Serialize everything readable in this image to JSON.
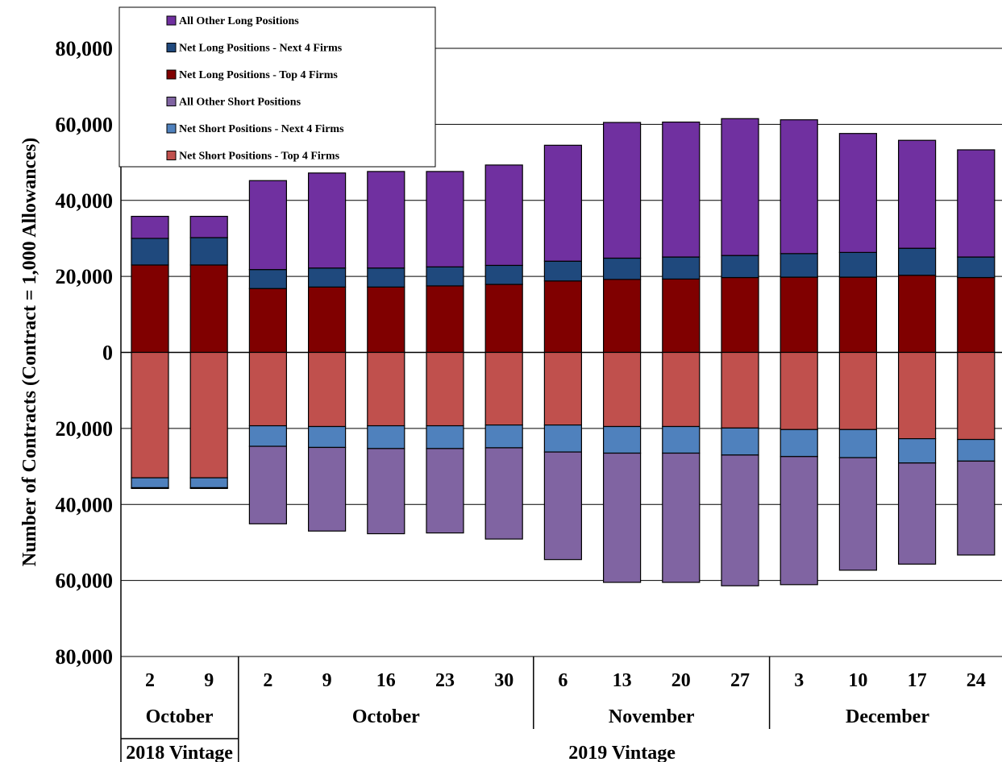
{
  "chart_data": {
    "type": "bar",
    "stacked": "diverging",
    "ylabel": "Number of Contracts (Contract = 1,000 Allowances)",
    "ylim": [
      -80000,
      80000
    ],
    "yticks": [
      80000,
      60000,
      40000,
      20000,
      0,
      -20000,
      -40000,
      -60000,
      -80000
    ],
    "ytick_labels": [
      "80,000",
      "60,000",
      "40,000",
      "20,000",
      "0",
      "20,000",
      "40,000",
      "60,000",
      "80,000"
    ],
    "grid": true,
    "legend_position": "top-left",
    "categories": [
      "2",
      "9",
      "2",
      "9",
      "16",
      "23",
      "30",
      "6",
      "13",
      "20",
      "27",
      "3",
      "10",
      "17",
      "24"
    ],
    "month_groups": [
      {
        "label": "October",
        "count": 2
      },
      {
        "label": "October",
        "count": 5
      },
      {
        "label": "November",
        "count": 4
      },
      {
        "label": "December",
        "count": 4
      }
    ],
    "vintage_groups": [
      {
        "label": "2018 Vintage",
        "count": 2
      },
      {
        "label": "2019 Vintage",
        "count": 13
      }
    ],
    "series": [
      {
        "name": "Net Short Positions - Top 4 Firms",
        "color": "#c0504d",
        "values": [
          -33000,
          -33000,
          -19300,
          -19500,
          -19300,
          -19300,
          -19100,
          -19100,
          -19500,
          -19500,
          -19900,
          -20300,
          -20300,
          -22700,
          -22900
        ]
      },
      {
        "name": "Net Short Positions - Next 4 Firms",
        "color": "#4f81bd",
        "values": [
          -2600,
          -2600,
          -5400,
          -5500,
          -6000,
          -6000,
          -6000,
          -7100,
          -7000,
          -7000,
          -7100,
          -7100,
          -7400,
          -6400,
          -5700
        ]
      },
      {
        "name": "All Other Short Positions",
        "color": "#8064a2",
        "values": [
          -200,
          -200,
          -20400,
          -22000,
          -22400,
          -22200,
          -24000,
          -28300,
          -34000,
          -34000,
          -34400,
          -33700,
          -29600,
          -26600,
          -24700
        ]
      },
      {
        "name": "Net Long Positions - Top 4 Firms",
        "color": "#800000",
        "values": [
          23000,
          23000,
          16800,
          17200,
          17200,
          17500,
          17900,
          18800,
          19200,
          19300,
          19700,
          19800,
          19800,
          20300,
          19700
        ]
      },
      {
        "name": "Net Long Positions - Next 4 Firms",
        "color": "#1f497d",
        "values": [
          7000,
          7200,
          5000,
          5000,
          5000,
          5000,
          5000,
          5200,
          5600,
          5800,
          5800,
          6200,
          6500,
          7100,
          5400
        ]
      },
      {
        "name": "All Other Long Positions",
        "color": "#7030a0",
        "values": [
          5800,
          5600,
          23400,
          25000,
          25400,
          25100,
          26400,
          30500,
          35700,
          35500,
          36000,
          35200,
          31300,
          28400,
          28200
        ]
      }
    ],
    "legend_order": [
      "All Other Long Positions",
      "Net Long Positions - Next 4 Firms",
      "Net Long Positions - Top 4 Firms",
      "All Other Short Positions",
      "Net Short Positions - Next 4 Firms",
      "Net Short Positions - Top 4 Firms"
    ],
    "stack_order_long": [
      "Net Long Positions - Top 4 Firms",
      "Net Long Positions - Next 4 Firms",
      "All Other Long Positions"
    ],
    "stack_order_short": [
      "Net Short Positions - Top 4 Firms",
      "Net Short Positions - Next 4 Firms",
      "All Other Short Positions"
    ]
  }
}
